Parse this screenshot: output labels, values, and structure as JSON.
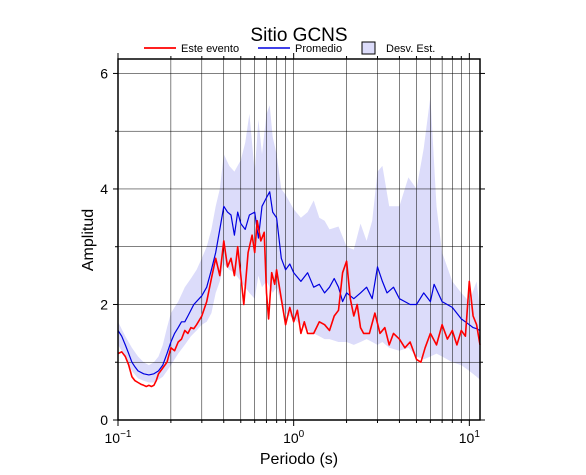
{
  "chart_data": {
    "type": "line",
    "title": "Sitio GCNS",
    "xlabel": "Periodo (s)",
    "ylabel": "Amplitud",
    "xscale": "log",
    "xlim": [
      0.1,
      11.5
    ],
    "ylim": [
      0,
      6.25
    ],
    "grid": true,
    "legend_position": "top",
    "x_ticks": [
      {
        "value": 0.1,
        "base": "10",
        "exp": "−1"
      },
      {
        "value": 1,
        "base": "10",
        "exp": "0"
      },
      {
        "value": 10,
        "base": "10",
        "exp": "1"
      }
    ],
    "y_ticks": [
      {
        "value": 0,
        "label": "0"
      },
      {
        "value": 2,
        "label": "2"
      },
      {
        "value": 4,
        "label": "4"
      },
      {
        "value": 6,
        "label": "6"
      }
    ],
    "legend": {
      "event_label": "Este evento",
      "mean_label": "Promedio",
      "std_label": "Desv. Est."
    },
    "colors": {
      "event": "#ff0000",
      "mean": "#0000e0",
      "band_fill": "#dcdcfa",
      "band_edge": "#8080ff",
      "grid": "#000000"
    },
    "series": [
      {
        "name": "Este evento",
        "x": [
          0.1,
          0.105,
          0.11,
          0.115,
          0.12,
          0.125,
          0.13,
          0.135,
          0.14,
          0.145,
          0.15,
          0.155,
          0.16,
          0.165,
          0.17,
          0.18,
          0.19,
          0.2,
          0.21,
          0.22,
          0.23,
          0.24,
          0.25,
          0.26,
          0.27,
          0.28,
          0.3,
          0.32,
          0.34,
          0.36,
          0.38,
          0.4,
          0.42,
          0.44,
          0.46,
          0.48,
          0.5,
          0.52,
          0.55,
          0.58,
          0.6,
          0.62,
          0.65,
          0.68,
          0.7,
          0.72,
          0.75,
          0.78,
          0.8,
          0.85,
          0.9,
          0.95,
          1.0,
          1.05,
          1.1,
          1.15,
          1.2,
          1.3,
          1.4,
          1.5,
          1.6,
          1.7,
          1.8,
          1.9,
          2.0,
          2.1,
          2.2,
          2.3,
          2.4,
          2.5,
          2.7,
          2.9,
          3.1,
          3.3,
          3.5,
          3.7,
          4.0,
          4.3,
          4.6,
          5.0,
          5.3,
          5.6,
          6.0,
          6.5,
          7.0,
          7.5,
          8.0,
          8.5,
          9.0,
          9.5,
          10.0,
          10.5,
          11.0,
          11.5
        ],
        "y": [
          1.15,
          1.18,
          1.1,
          0.95,
          0.75,
          0.68,
          0.65,
          0.62,
          0.6,
          0.58,
          0.6,
          0.58,
          0.6,
          0.68,
          0.8,
          0.9,
          1.0,
          1.25,
          1.2,
          1.35,
          1.4,
          1.55,
          1.5,
          1.6,
          1.58,
          1.65,
          1.8,
          2.05,
          2.45,
          2.8,
          2.5,
          3.1,
          2.65,
          2.8,
          2.5,
          3.0,
          2.5,
          2.0,
          2.9,
          3.2,
          2.9,
          3.45,
          3.1,
          3.25,
          2.2,
          1.75,
          2.55,
          2.35,
          2.6,
          2.1,
          1.65,
          1.95,
          1.7,
          1.9,
          1.5,
          1.7,
          1.5,
          1.5,
          1.7,
          1.65,
          1.55,
          1.8,
          1.9,
          2.55,
          2.75,
          2.1,
          1.8,
          2.0,
          1.6,
          1.5,
          1.5,
          1.85,
          1.5,
          1.6,
          1.3,
          1.5,
          1.4,
          1.25,
          1.35,
          1.05,
          1.0,
          1.25,
          1.5,
          1.3,
          1.65,
          1.4,
          1.55,
          1.3,
          1.55,
          1.45,
          2.4,
          1.8,
          1.65,
          1.3
        ]
      },
      {
        "name": "Promedio",
        "x": [
          0.1,
          0.105,
          0.11,
          0.115,
          0.12,
          0.125,
          0.13,
          0.14,
          0.15,
          0.16,
          0.17,
          0.18,
          0.19,
          0.2,
          0.21,
          0.22,
          0.23,
          0.24,
          0.25,
          0.27,
          0.3,
          0.32,
          0.34,
          0.36,
          0.38,
          0.4,
          0.42,
          0.44,
          0.46,
          0.48,
          0.5,
          0.53,
          0.56,
          0.6,
          0.63,
          0.66,
          0.7,
          0.73,
          0.76,
          0.8,
          0.85,
          0.9,
          0.95,
          1.0,
          1.1,
          1.2,
          1.3,
          1.4,
          1.5,
          1.6,
          1.7,
          1.8,
          1.9,
          2.0,
          2.2,
          2.4,
          2.6,
          2.8,
          3.0,
          3.2,
          3.4,
          3.7,
          4.0,
          4.3,
          4.6,
          5.0,
          5.5,
          6.0,
          6.3,
          7.0,
          8.0,
          9.0,
          10.0,
          10.5,
          11.0,
          11.5
        ],
        "y": [
          1.55,
          1.45,
          1.3,
          1.15,
          1.0,
          0.92,
          0.85,
          0.8,
          0.78,
          0.8,
          0.85,
          0.95,
          1.15,
          1.35,
          1.5,
          1.6,
          1.7,
          1.7,
          1.8,
          2.0,
          2.15,
          2.3,
          2.6,
          2.9,
          3.3,
          3.7,
          3.6,
          3.55,
          3.2,
          3.6,
          3.4,
          3.3,
          3.55,
          3.6,
          3.15,
          3.7,
          3.85,
          3.95,
          3.6,
          3.5,
          2.8,
          2.6,
          2.7,
          2.55,
          2.4,
          2.55,
          2.3,
          2.35,
          2.2,
          2.3,
          2.45,
          2.3,
          2.05,
          2.2,
          2.1,
          2.2,
          2.3,
          2.1,
          2.65,
          2.4,
          2.2,
          2.3,
          2.1,
          2.05,
          2.0,
          2.0,
          2.2,
          2.05,
          2.35,
          2.05,
          1.95,
          1.75,
          1.65,
          1.6,
          1.58,
          1.55
        ]
      }
    ],
    "band": {
      "name": "Desv. Est.",
      "x": [
        0.1,
        0.11,
        0.12,
        0.13,
        0.14,
        0.15,
        0.16,
        0.17,
        0.18,
        0.19,
        0.2,
        0.22,
        0.24,
        0.26,
        0.28,
        0.3,
        0.32,
        0.34,
        0.36,
        0.38,
        0.4,
        0.43,
        0.46,
        0.5,
        0.53,
        0.56,
        0.6,
        0.63,
        0.66,
        0.7,
        0.73,
        0.76,
        0.8,
        0.85,
        0.9,
        1.0,
        1.1,
        1.2,
        1.3,
        1.4,
        1.5,
        1.6,
        1.8,
        2.0,
        2.2,
        2.4,
        2.6,
        2.8,
        3.0,
        3.2,
        3.5,
        4.0,
        4.5,
        5.0,
        5.5,
        6.0,
        6.5,
        7.0,
        8.0,
        9.0,
        10.0,
        11.0,
        11.5
      ],
      "upper": [
        1.7,
        1.45,
        1.25,
        1.1,
        1.0,
        0.95,
        1.0,
        1.1,
        1.3,
        1.6,
        1.85,
        2.05,
        2.3,
        2.45,
        2.6,
        2.8,
        3.0,
        3.3,
        3.7,
        4.0,
        4.6,
        4.4,
        4.3,
        4.5,
        4.8,
        5.3,
        4.3,
        5.2,
        4.6,
        5.3,
        5.45,
        4.9,
        4.6,
        4.0,
        3.9,
        3.65,
        3.5,
        3.6,
        3.8,
        3.5,
        3.45,
        3.3,
        3.35,
        3.0,
        2.95,
        3.4,
        3.1,
        3.45,
        4.3,
        4.4,
        3.7,
        3.7,
        4.2,
        4.0,
        4.7,
        5.6,
        3.7,
        2.9,
        2.4,
        2.2,
        2.05,
        2.4,
        1.9
      ],
      "lower": [
        1.3,
        1.1,
        0.85,
        0.72,
        0.68,
        0.65,
        0.65,
        0.7,
        0.75,
        0.85,
        0.95,
        1.15,
        1.3,
        1.45,
        1.55,
        1.65,
        1.7,
        1.85,
        2.2,
        2.4,
        2.7,
        2.6,
        2.55,
        2.4,
        2.3,
        2.2,
        2.1,
        2.5,
        2.3,
        2.4,
        2.3,
        2.2,
        2.3,
        2.0,
        1.85,
        1.75,
        1.65,
        1.55,
        1.5,
        1.45,
        1.4,
        1.4,
        1.35,
        1.35,
        1.3,
        1.35,
        1.4,
        1.35,
        1.3,
        1.35,
        1.25,
        1.2,
        1.25,
        1.1,
        1.05,
        1.1,
        1.15,
        1.1,
        1.0,
        0.95,
        0.85,
        0.75,
        0.7
      ]
    }
  }
}
